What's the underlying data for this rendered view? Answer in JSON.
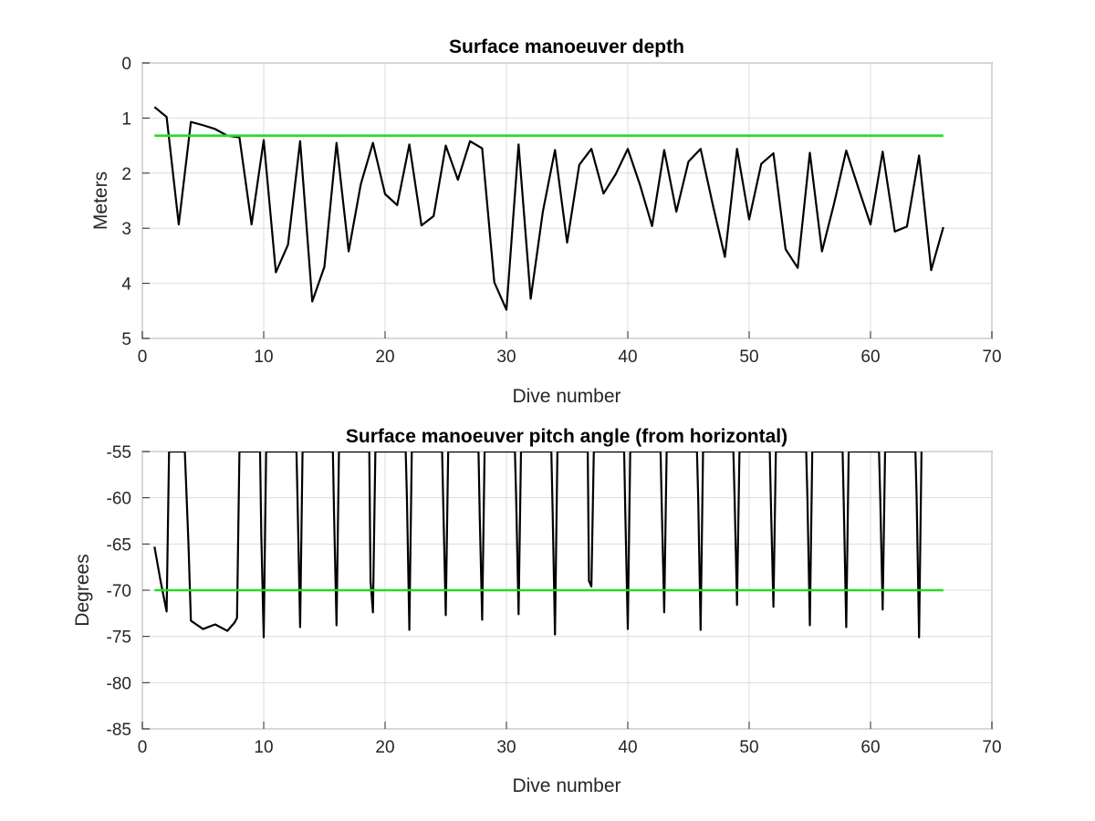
{
  "chart_data": [
    {
      "type": "line",
      "title": "Surface manoeuver depth",
      "xlabel": "Dive number",
      "ylabel": "Meters",
      "xlim": [
        0,
        70
      ],
      "ylim": [
        0,
        5
      ],
      "y_reversed": true,
      "xticks": [
        "0",
        "10",
        "20",
        "30",
        "40",
        "50",
        "60",
        "70"
      ],
      "yticks": [
        "0",
        "1",
        "2",
        "3",
        "4",
        "5"
      ],
      "grid": true,
      "series": [
        {
          "color": "#000000",
          "x": [
            1,
            2,
            3,
            4,
            5,
            6,
            7,
            8,
            9,
            10,
            11,
            12,
            13,
            14,
            15,
            16,
            17,
            18,
            19,
            20,
            21,
            22,
            23,
            24,
            25,
            26,
            27,
            28,
            29,
            30,
            31,
            32,
            33,
            34,
            35,
            36,
            37,
            38,
            39,
            40,
            41,
            42,
            43,
            44,
            45,
            46,
            47,
            48,
            49,
            50,
            51,
            52,
            53,
            54,
            55,
            56,
            57,
            58,
            59,
            60,
            61,
            62,
            63,
            64,
            65,
            66
          ],
          "values": [
            0.8,
            0.98,
            2.93,
            1.07,
            1.13,
            1.2,
            1.32,
            1.35,
            2.93,
            1.4,
            3.8,
            3.3,
            1.42,
            4.33,
            3.7,
            1.45,
            3.42,
            2.2,
            1.45,
            2.38,
            2.58,
            1.48,
            2.95,
            2.78,
            1.5,
            2.12,
            1.42,
            1.55,
            3.98,
            4.48,
            1.48,
            4.28,
            2.7,
            1.58,
            3.26,
            1.85,
            1.56,
            2.37,
            2.02,
            1.56,
            2.21,
            2.96,
            1.58,
            2.7,
            1.79,
            1.56,
            2.57,
            3.52,
            1.56,
            2.84,
            1.83,
            1.64,
            3.38,
            3.72,
            1.63,
            3.42,
            2.55,
            1.59,
            2.27,
            2.93,
            1.61,
            3.06,
            2.97,
            1.68,
            3.76,
            2.98
          ]
        },
        {
          "color": "#22dd22",
          "x": [
            1,
            66
          ],
          "values": [
            1.32,
            1.32
          ]
        }
      ]
    },
    {
      "type": "line",
      "title": "Surface manoeuver pitch angle (from horizontal)",
      "xlabel": "Dive number",
      "ylabel": "Degrees",
      "xlim": [
        0,
        70
      ],
      "ylim": [
        -85,
        -55
      ],
      "xticks": [
        "0",
        "10",
        "20",
        "30",
        "40",
        "50",
        "60",
        "70"
      ],
      "yticks": [
        "-55",
        "-60",
        "-65",
        "-70",
        "-75",
        "-80",
        "-85"
      ],
      "grid": true,
      "series": [
        {
          "color": "#000000",
          "x": [
            1,
            1.5,
            2,
            2.2,
            3.5,
            3.8,
            4,
            5,
            6,
            7,
            7.6,
            7.8,
            8,
            9.7,
            9.8,
            10,
            10.2,
            12.7,
            12.8,
            13,
            13.2,
            15.7,
            15.8,
            16,
            16.2,
            18.7,
            18.8,
            19,
            19.2,
            21.7,
            21.8,
            22,
            22.2,
            24.7,
            24.8,
            25,
            25.2,
            27.7,
            27.8,
            28,
            28.2,
            30.7,
            30.8,
            31,
            31.2,
            33.7,
            33.8,
            34,
            34.2,
            36.7,
            36.8,
            37,
            37.2,
            39.7,
            39.8,
            40,
            40.2,
            42.7,
            42.8,
            43,
            43.2,
            45.7,
            45.8,
            46,
            46.2,
            48.7,
            48.8,
            49,
            49.2,
            51.7,
            51.8,
            52,
            52.2,
            54.7,
            54.8,
            55,
            55.2,
            57.7,
            57.8,
            58,
            58.2,
            60.7,
            60.8,
            61,
            61.2,
            63.7,
            63.8,
            64,
            64.2
          ],
          "values": [
            -65.3,
            -69,
            -72.3,
            -55,
            -55,
            -65,
            -73.3,
            -74.2,
            -73.7,
            -74.4,
            -73.5,
            -73,
            -55,
            -55,
            -64,
            -75.1,
            -55,
            -55,
            -61,
            -74,
            -55,
            -55,
            -62,
            -73.8,
            -55,
            -55,
            -69,
            -72.4,
            -55,
            -55,
            -60,
            -74.3,
            -55,
            -55,
            -61,
            -72.7,
            -55,
            -55,
            -62,
            -73.2,
            -55,
            -55,
            -60,
            -72.6,
            -55,
            -55,
            -61,
            -74.8,
            -55,
            -55,
            -69,
            -69.6,
            -55,
            -55,
            -62,
            -74.2,
            -55,
            -55,
            -61,
            -72.4,
            -55,
            -55,
            -60,
            -74.3,
            -55,
            -55,
            -60,
            -71.6,
            -55,
            -55,
            -61,
            -71.8,
            -55,
            -55,
            -60,
            -73.8,
            -55,
            -55,
            -61,
            -74,
            -55,
            -55,
            -60,
            -72.1,
            -55,
            -55,
            -60,
            -75.1,
            -55
          ]
        },
        {
          "color": "#22dd22",
          "x": [
            1,
            66
          ],
          "values": [
            -70,
            -70
          ]
        }
      ]
    }
  ]
}
